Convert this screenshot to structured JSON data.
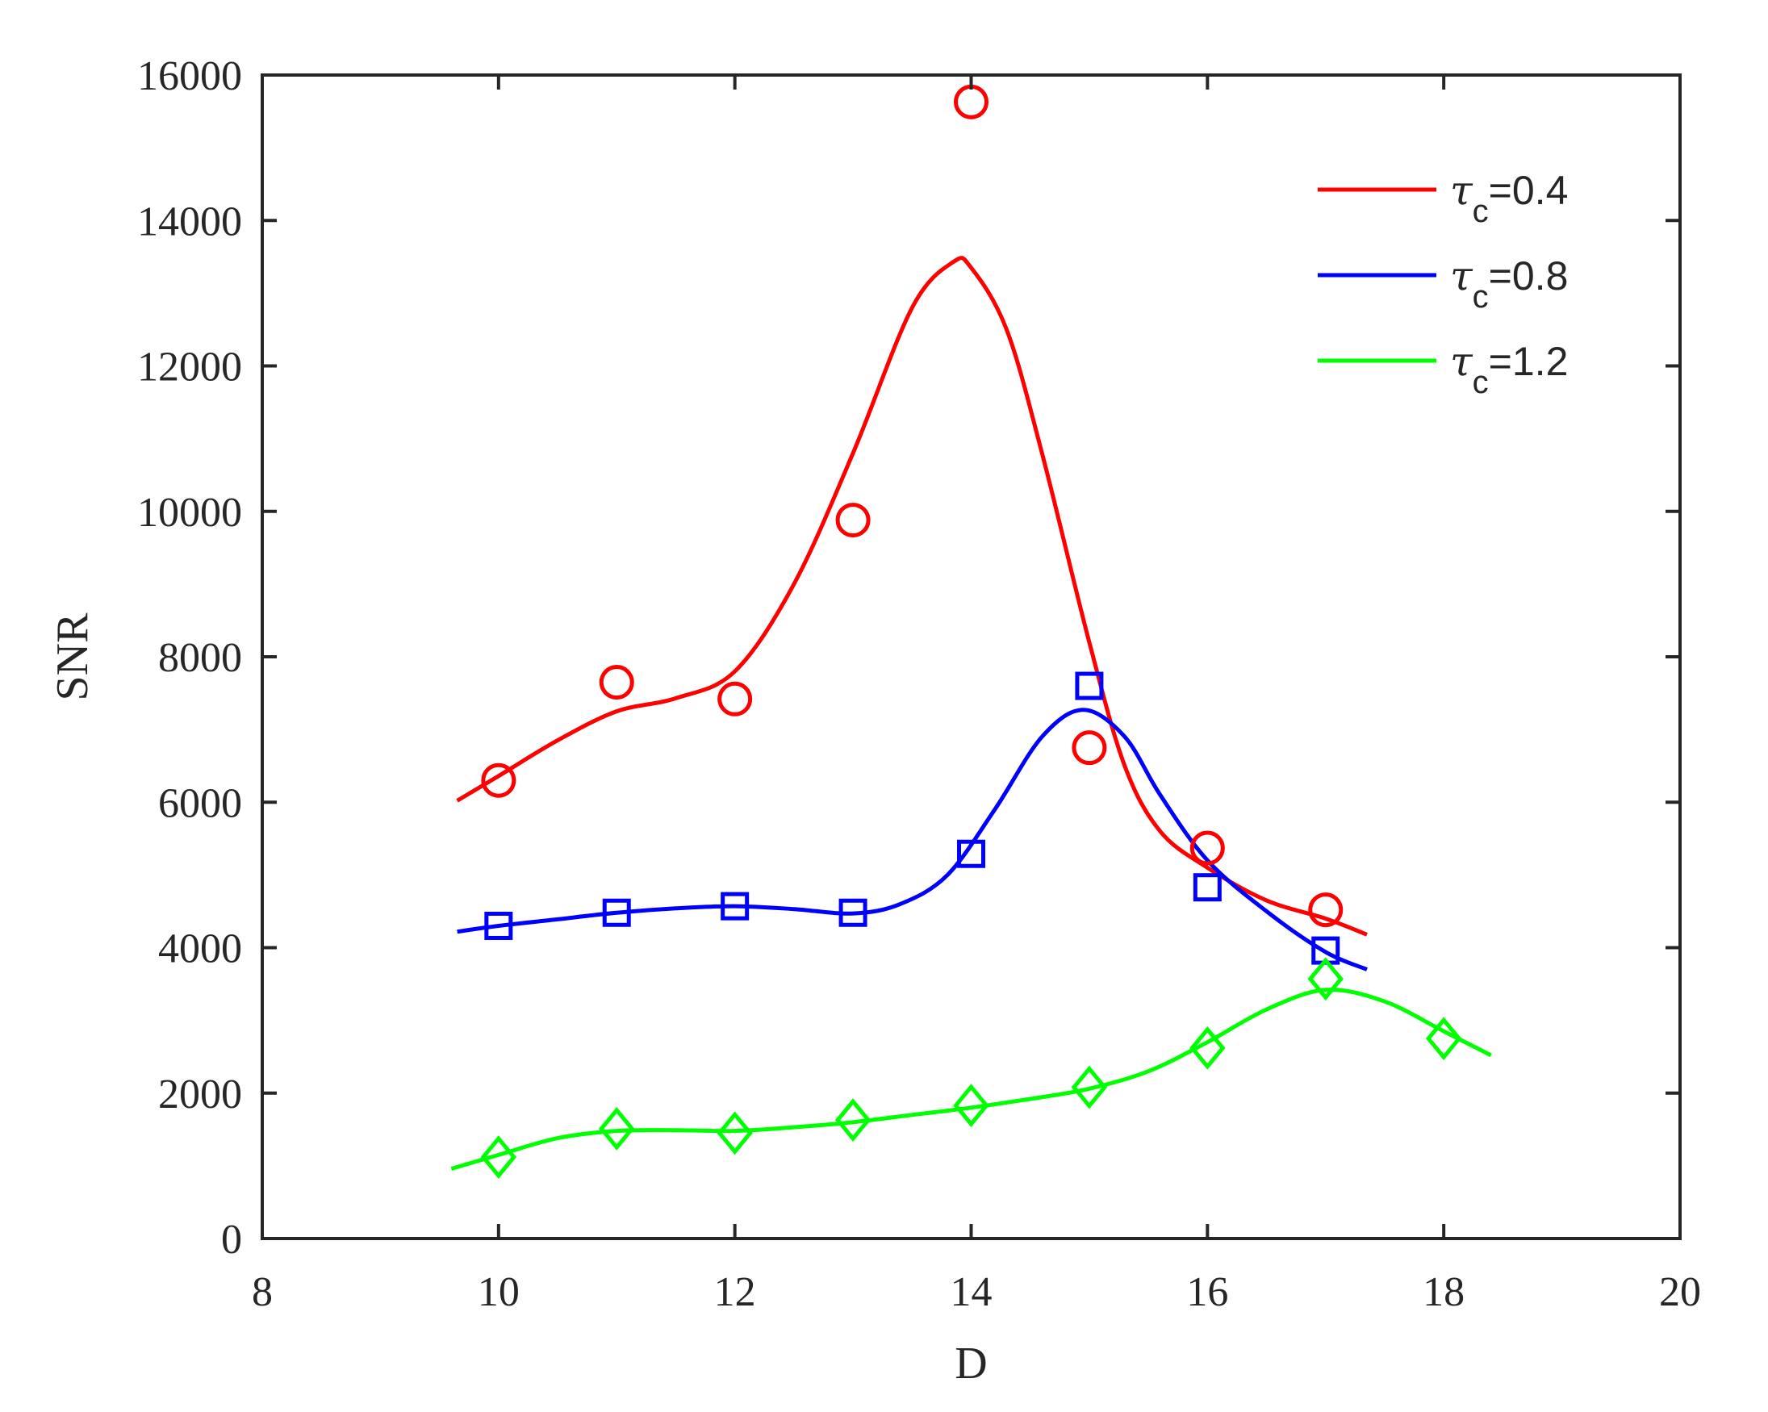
{
  "chart_data": {
    "type": "line",
    "xlabel": "D",
    "ylabel": "SNR",
    "xlim": [
      8,
      20
    ],
    "ylim": [
      0,
      16000
    ],
    "xticks": [
      8,
      10,
      12,
      14,
      16,
      18,
      20
    ],
    "yticks": [
      0,
      2000,
      4000,
      6000,
      8000,
      10000,
      12000,
      14000,
      16000
    ],
    "grid": false,
    "legend_position": "top-right",
    "series": [
      {
        "name": "τc=0.4",
        "legend_symbol": "τ",
        "legend_subscript": "c",
        "legend_value": "=0.4",
        "color": "#ff0000",
        "marker": "circle",
        "points": {
          "x": [
            10,
            11,
            12,
            13,
            14,
            15,
            16,
            17
          ],
          "y": [
            6300,
            7650,
            7420,
            9880,
            15630,
            6750,
            5370,
            4520
          ]
        },
        "fit": {
          "x": [
            9.65,
            10,
            10.5,
            11,
            11.5,
            12,
            12.5,
            13,
            13.5,
            13.85,
            14,
            14.3,
            14.6,
            15,
            15.3,
            15.6,
            16,
            16.5,
            17,
            17.35
          ],
          "y": [
            6020,
            6360,
            6850,
            7250,
            7430,
            7800,
            9000,
            10800,
            12800,
            13430,
            13350,
            12500,
            10800,
            8200,
            6500,
            5600,
            5100,
            4650,
            4400,
            4180
          ]
        }
      },
      {
        "name": "τc=0.8",
        "legend_symbol": "τ",
        "legend_subscript": "c",
        "legend_value": "=0.8",
        "color": "#0000ff",
        "marker": "square",
        "points": {
          "x": [
            10,
            11,
            12,
            13,
            14,
            15,
            16,
            17
          ],
          "y": [
            4300,
            4480,
            4570,
            4480,
            5290,
            7600,
            4830,
            3960
          ]
        },
        "fit": {
          "x": [
            9.65,
            10,
            10.5,
            11,
            11.5,
            12,
            12.5,
            13,
            13.4,
            13.8,
            14.2,
            14.6,
            14.95,
            15.3,
            15.6,
            16,
            16.5,
            17,
            17.35
          ],
          "y": [
            4220,
            4300,
            4390,
            4480,
            4540,
            4570,
            4530,
            4470,
            4600,
            5000,
            5900,
            6900,
            7270,
            6900,
            6100,
            5200,
            4500,
            3940,
            3700
          ]
        }
      },
      {
        "name": "τc=1.2",
        "legend_symbol": "τ",
        "legend_subscript": "c",
        "legend_value": "=1.2",
        "color": "#00ff00",
        "marker": "diamond",
        "points": {
          "x": [
            10,
            11,
            12,
            13,
            14,
            15,
            16,
            17,
            18
          ],
          "y": [
            1120,
            1510,
            1450,
            1630,
            1830,
            2080,
            2620,
            3570,
            2750
          ]
        },
        "fit": {
          "x": [
            9.6,
            10,
            10.5,
            11,
            11.5,
            12,
            12.5,
            13,
            13.5,
            14,
            14.5,
            15,
            15.5,
            16,
            16.5,
            17,
            17.5,
            18,
            18.4
          ],
          "y": [
            960,
            1150,
            1380,
            1480,
            1490,
            1480,
            1530,
            1600,
            1700,
            1800,
            1920,
            2060,
            2300,
            2700,
            3150,
            3420,
            3260,
            2850,
            2520
          ]
        }
      }
    ]
  }
}
